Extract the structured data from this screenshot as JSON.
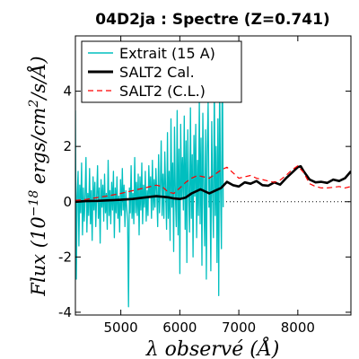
{
  "chart_data": {
    "type": "line",
    "title": "04D2ja : Spectre (Z=0.741)",
    "xlabel": "λ observé (Å)",
    "ylabel": "Flux (10^-18 ergs/cm^2/s/Å)",
    "ylabel_parts": {
      "pre": "Flux (10",
      "exp": "−18",
      "mid": " ergs/cm",
      "exp2": "2",
      "post": "/s/Å)"
    },
    "xlim": [
      4230,
      8900
    ],
    "ylim": [
      -4.1,
      6.0
    ],
    "xticks": [
      5000,
      6000,
      7000,
      8000
    ],
    "xtick_labels": [
      "5000",
      "6000",
      "7000",
      "8000"
    ],
    "yticks": [
      -4,
      -2,
      0,
      2,
      4
    ],
    "ytick_labels": [
      "-4",
      "-2",
      "0",
      "2",
      "4"
    ],
    "zero_line": {
      "y": 0,
      "style": "dotted",
      "color": "#000000"
    },
    "legend": {
      "position": "top-left"
    },
    "series": [
      {
        "name": "Extrait (15 A)",
        "style": "solid",
        "color": "#00bfbf",
        "x_start": 4230,
        "x_step": 15,
        "values": [
          3.3,
          -2.8,
          0.2,
          1.1,
          -1.6,
          0.6,
          -0.4,
          1.4,
          -1.2,
          0.5,
          -0.7,
          0.2,
          1.6,
          -1.1,
          0.3,
          -0.5,
          1.2,
          -0.8,
          0.4,
          -1.4,
          0.9,
          -0.3,
          0.7,
          -0.9,
          0.2,
          1.3,
          -0.6,
          0.5,
          -1.5,
          0.8,
          -0.2,
          0.6,
          -0.7,
          1.0,
          -0.4,
          0.3,
          -1.0,
          1.5,
          -0.5,
          0.4,
          -0.8,
          0.7,
          -0.3,
          1.1,
          -1.3,
          0.5,
          -0.4,
          0.9,
          -0.6,
          0.2,
          -1.1,
          0.8,
          -0.5,
          1.2,
          -0.3,
          0.6,
          -0.9,
          0.4,
          -0.2,
          -0.7,
          -3.8,
          0.5,
          -0.4,
          1.3,
          -0.6,
          0.3,
          -0.8,
          1.6,
          -0.4,
          0.7,
          -0.5,
          1.0,
          -1.2,
          0.9,
          -0.3,
          1.4,
          -0.8,
          0.6,
          -0.2,
          1.1,
          -0.7,
          0.4,
          -0.5,
          1.3,
          0.2,
          0.9,
          -0.6,
          1.5,
          -0.3,
          0.8,
          -0.2,
          1.2,
          0.3,
          -0.9,
          1.7,
          -0.4,
          0.6,
          2.2,
          -0.5,
          1.0,
          -0.6,
          1.8,
          0.4,
          -1.0,
          2.5,
          -0.6,
          1.1,
          -1.4,
          3.0,
          -0.2,
          1.4,
          -1.8,
          2.7,
          0.3,
          -0.9,
          3.3,
          -1.2,
          1.9,
          -2.6,
          2.8,
          0.1,
          1.6,
          -0.3,
          3.1,
          -1.0,
          2.2,
          -2.2,
          2.6,
          0.4,
          -1.1,
          3.4,
          -0.6,
          1.7,
          -2.0,
          2.4,
          0.2,
          2.8,
          -1.3,
          1.5,
          -0.5,
          3.7,
          -0.8,
          2.3,
          -2.3,
          3.2,
          0.6,
          -1.6,
          2.6,
          -2.8,
          1.8,
          3.6,
          -0.2,
          0.9,
          -2.5,
          2.9,
          0.5,
          -1.3,
          4.3,
          -0.5,
          2.0,
          -2.2,
          3.0,
          -3.4,
          4.4,
          0.6,
          -1.7,
          5.5,
          -0.2
        ]
      },
      {
        "name": "SALT2 Cal.",
        "style": "solid",
        "color": "#000000",
        "x": [
          4230,
          4400,
          4600,
          4800,
          5000,
          5200,
          5400,
          5600,
          5800,
          5900,
          6000,
          6100,
          6200,
          6350,
          6500,
          6600,
          6700,
          6800,
          6900,
          7000,
          7100,
          7200,
          7300,
          7400,
          7500,
          7600,
          7700,
          7800,
          7900,
          8000,
          8050,
          8100,
          8200,
          8300,
          8400,
          8500,
          8600,
          8700,
          8800,
          8900
        ],
        "values": [
          0.0,
          0.02,
          0.03,
          0.05,
          0.07,
          0.1,
          0.15,
          0.2,
          0.16,
          0.12,
          0.1,
          0.15,
          0.3,
          0.45,
          0.3,
          0.4,
          0.5,
          0.72,
          0.6,
          0.55,
          0.7,
          0.65,
          0.75,
          0.6,
          0.58,
          0.7,
          0.62,
          0.85,
          1.05,
          1.25,
          1.28,
          1.1,
          0.8,
          0.7,
          0.72,
          0.68,
          0.8,
          0.75,
          0.85,
          1.1
        ]
      },
      {
        "name": "SALT2 (C.L.)",
        "style": "dashed",
        "color": "#ff0000",
        "x": [
          4230,
          4400,
          4600,
          4800,
          5000,
          5200,
          5400,
          5600,
          5700,
          5800,
          5900,
          6000,
          6100,
          6200,
          6300,
          6400,
          6500,
          6600,
          6700,
          6800,
          6900,
          7000,
          7100,
          7200,
          7300,
          7400,
          7500,
          7600,
          7700,
          7800,
          7900,
          8000,
          8100,
          8200,
          8300,
          8400,
          8500,
          8600,
          8700,
          8800,
          8900
        ],
        "values": [
          0.05,
          0.08,
          0.15,
          0.22,
          0.3,
          0.4,
          0.5,
          0.6,
          0.55,
          0.35,
          0.3,
          0.5,
          0.7,
          0.85,
          0.95,
          0.9,
          0.85,
          1.0,
          1.15,
          1.25,
          1.05,
          0.85,
          0.9,
          0.95,
          0.85,
          0.8,
          0.75,
          0.7,
          0.78,
          0.95,
          1.15,
          1.3,
          1.05,
          0.65,
          0.55,
          0.5,
          0.5,
          0.52,
          0.55,
          0.5,
          0.55
        ]
      }
    ]
  }
}
